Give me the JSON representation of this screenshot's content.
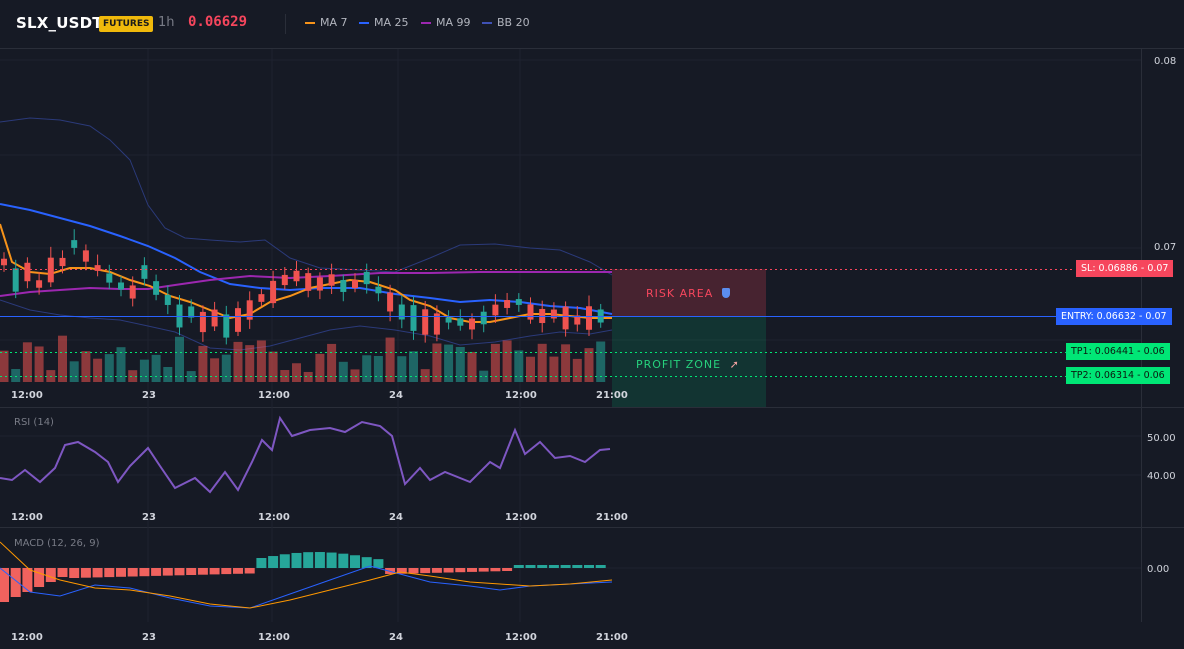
{
  "header": {
    "symbol": "SLX_USDT",
    "badge": "FUTURES",
    "interval": "1h",
    "price": "0.06629",
    "legend": [
      {
        "label": "MA 7",
        "color": "#f7931a"
      },
      {
        "label": "MA 25",
        "color": "#2962ff"
      },
      {
        "label": "MA 99",
        "color": "#9c27b0"
      },
      {
        "label": "BB 20",
        "color": "#3f51b5"
      }
    ]
  },
  "price_axis": {
    "labels": [
      "0.08",
      "0.07"
    ]
  },
  "time_axis": {
    "labels": [
      "12:00",
      "23",
      "12:00",
      "24",
      "12:00",
      "21:00"
    ]
  },
  "levels": {
    "sl": {
      "tag": "SL: 0.06886",
      "axis": "0.07",
      "color": "#f6465d"
    },
    "entry": {
      "tag": "ENTRY: 0.06632",
      "axis": "0.07",
      "color": "#2962ff"
    },
    "tp1": {
      "tag": "TP1: 0.06441",
      "axis": "0.06",
      "color": "#00e676"
    },
    "tp2": {
      "tag": "TP2: 0.06314",
      "axis": "0.06",
      "color": "#00e676"
    }
  },
  "zones": {
    "risk": {
      "label": "RISK AREA",
      "icon": "shield-icon"
    },
    "profit": {
      "label": "PROFIT ZONE",
      "icon": "rocket-icon"
    }
  },
  "rsi": {
    "title": "RSI (14)",
    "axis_labels": [
      "50.00",
      "40.00"
    ]
  },
  "macd": {
    "title": "MACD (12, 26, 9)",
    "axis_labels": [
      "0.00"
    ]
  },
  "colors": {
    "up": "#26a69a",
    "down": "#ef5350",
    "rsi": "#7e57c2",
    "macd": "#2962ff",
    "signal": "#ff9800"
  }
}
